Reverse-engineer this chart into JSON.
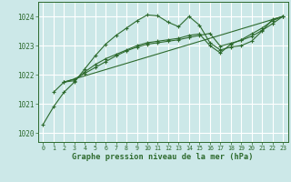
{
  "bg_color": "#cce8e8",
  "grid_color": "#ffffff",
  "line_color": "#2d6a2d",
  "xlabel": "Graphe pression niveau de la mer (hPa)",
  "ylim": [
    1019.7,
    1024.5
  ],
  "yticks": [
    1020,
    1021,
    1022,
    1023,
    1024
  ],
  "xlim": [
    -0.5,
    23.5
  ],
  "xticks": [
    0,
    1,
    2,
    3,
    4,
    5,
    6,
    7,
    8,
    9,
    10,
    11,
    12,
    13,
    14,
    15,
    16,
    17,
    18,
    19,
    20,
    21,
    22,
    23
  ],
  "series1_x": [
    0,
    1,
    2,
    3,
    4,
    5,
    6,
    7,
    8,
    9,
    10,
    11,
    12,
    13,
    14,
    15,
    16,
    17,
    18,
    19,
    20,
    21,
    22,
    23
  ],
  "series1_y": [
    1020.3,
    1020.9,
    1021.4,
    1021.75,
    1022.2,
    1022.65,
    1023.05,
    1023.35,
    1023.6,
    1023.85,
    1024.05,
    1024.02,
    1023.8,
    1023.65,
    1024.0,
    1023.7,
    1023.1,
    1022.85,
    1022.95,
    1023.0,
    1023.15,
    1023.5,
    1023.9,
    1024.0
  ],
  "series2_x": [
    1,
    2,
    3,
    4,
    5,
    6,
    7,
    8,
    9,
    10,
    11,
    12,
    13,
    14,
    15,
    16,
    17,
    18,
    19,
    20,
    21,
    22,
    23
  ],
  "series2_y": [
    1021.4,
    1021.75,
    1021.8,
    1022.1,
    1022.35,
    1022.55,
    1022.7,
    1022.85,
    1023.0,
    1023.1,
    1023.15,
    1023.2,
    1023.25,
    1023.35,
    1023.4,
    1023.0,
    1022.75,
    1023.05,
    1023.2,
    1023.4,
    1023.6,
    1023.85,
    1024.0
  ],
  "series3_x": [
    2,
    3,
    4,
    5,
    6,
    7,
    8,
    9,
    10,
    11,
    12,
    13,
    14,
    15,
    16,
    17,
    18,
    19,
    20,
    21,
    22,
    23
  ],
  "series3_y": [
    1021.75,
    1021.85,
    1022.05,
    1022.25,
    1022.45,
    1022.65,
    1022.82,
    1022.95,
    1023.05,
    1023.1,
    1023.15,
    1023.2,
    1023.28,
    1023.35,
    1023.42,
    1022.98,
    1023.08,
    1023.18,
    1023.32,
    1023.52,
    1023.75,
    1024.0
  ],
  "series4_x": [
    2,
    23
  ],
  "series4_y": [
    1021.75,
    1024.0
  ]
}
